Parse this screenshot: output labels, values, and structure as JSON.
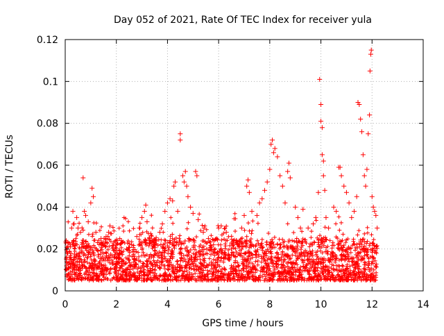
{
  "chart_data": {
    "type": "scatter",
    "title": "Day 052 of 2021, Rate Of TEC Index for receiver yula",
    "xlabel": "GPS time / hours",
    "ylabel": "ROTI / TECUs",
    "xlim": [
      0,
      14
    ],
    "ylim": [
      0,
      0.12
    ],
    "xticks": [
      0,
      2,
      4,
      6,
      8,
      10,
      12,
      14
    ],
    "yticks": [
      0,
      0.02,
      0.04,
      0.06,
      0.08,
      0.1,
      0.12
    ],
    "xtick_labels": [
      "0",
      "2",
      "4",
      "6",
      "8",
      "10",
      "12",
      "14"
    ],
    "ytick_labels": [
      "0",
      "0.02",
      "0.04",
      "0.06",
      "0.08",
      "0.1",
      "0.12"
    ],
    "grid": true,
    "marker": "+",
    "marker_color": "#ff0000",
    "background_band": {
      "x_range": [
        0,
        12.2
      ],
      "description_values": {
        "low": 0.005,
        "high": 0.025
      }
    },
    "series": [
      {
        "name": "ROTI",
        "points": [
          [
            0.05,
            0.015
          ],
          [
            0.1,
            0.018
          ],
          [
            0.2,
            0.022
          ],
          [
            0.25,
            0.03
          ],
          [
            0.3,
            0.038
          ],
          [
            0.35,
            0.032
          ],
          [
            0.45,
            0.035
          ],
          [
            0.5,
            0.03
          ],
          [
            0.6,
            0.028
          ],
          [
            0.7,
            0.054
          ],
          [
            0.75,
            0.038
          ],
          [
            0.8,
            0.036
          ],
          [
            0.9,
            0.033
          ],
          [
            1.0,
            0.042
          ],
          [
            1.05,
            0.049
          ],
          [
            1.1,
            0.045
          ],
          [
            1.2,
            0.028
          ],
          [
            1.4,
            0.025
          ],
          [
            1.6,
            0.026
          ],
          [
            1.7,
            0.028
          ],
          [
            1.75,
            0.031
          ],
          [
            2.0,
            0.022
          ],
          [
            2.2,
            0.024
          ],
          [
            2.4,
            0.02
          ],
          [
            2.6,
            0.022
          ],
          [
            2.8,
            0.026
          ],
          [
            2.9,
            0.03
          ],
          [
            3.0,
            0.035
          ],
          [
            3.1,
            0.038
          ],
          [
            3.15,
            0.041
          ],
          [
            3.2,
            0.033
          ],
          [
            3.3,
            0.025
          ],
          [
            3.5,
            0.022
          ],
          [
            3.7,
            0.028
          ],
          [
            3.8,
            0.032
          ],
          [
            3.9,
            0.038
          ],
          [
            4.0,
            0.042
          ],
          [
            4.1,
            0.044
          ],
          [
            4.2,
            0.043
          ],
          [
            4.25,
            0.05
          ],
          [
            4.3,
            0.052
          ],
          [
            4.4,
            0.038
          ],
          [
            4.5,
            0.075
          ],
          [
            4.5,
            0.072
          ],
          [
            4.6,
            0.055
          ],
          [
            4.65,
            0.052
          ],
          [
            4.7,
            0.057
          ],
          [
            4.75,
            0.05
          ],
          [
            4.8,
            0.045
          ],
          [
            4.9,
            0.04
          ],
          [
            5.0,
            0.037
          ],
          [
            5.1,
            0.057
          ],
          [
            5.15,
            0.055
          ],
          [
            5.2,
            0.034
          ],
          [
            5.4,
            0.028
          ],
          [
            5.6,
            0.025
          ],
          [
            5.8,
            0.022
          ],
          [
            6.0,
            0.03
          ],
          [
            6.1,
            0.031
          ],
          [
            6.3,
            0.028
          ],
          [
            6.5,
            0.02
          ],
          [
            6.7,
            0.024
          ],
          [
            6.9,
            0.03
          ],
          [
            7.0,
            0.036
          ],
          [
            7.1,
            0.05
          ],
          [
            7.15,
            0.053
          ],
          [
            7.2,
            0.047
          ],
          [
            7.3,
            0.038
          ],
          [
            7.5,
            0.036
          ],
          [
            7.6,
            0.042
          ],
          [
            7.7,
            0.044
          ],
          [
            7.8,
            0.048
          ],
          [
            7.9,
            0.052
          ],
          [
            8.0,
            0.058
          ],
          [
            8.05,
            0.07
          ],
          [
            8.1,
            0.072
          ],
          [
            8.15,
            0.066
          ],
          [
            8.2,
            0.068
          ],
          [
            8.3,
            0.064
          ],
          [
            8.4,
            0.055
          ],
          [
            8.5,
            0.05
          ],
          [
            8.6,
            0.042
          ],
          [
            8.7,
            0.057
          ],
          [
            8.75,
            0.061
          ],
          [
            8.8,
            0.054
          ],
          [
            9.0,
            0.04
          ],
          [
            9.1,
            0.035
          ],
          [
            9.2,
            0.03
          ],
          [
            9.3,
            0.039
          ],
          [
            9.5,
            0.03
          ],
          [
            9.7,
            0.032
          ],
          [
            9.8,
            0.035
          ],
          [
            9.9,
            0.047
          ],
          [
            9.95,
            0.101
          ],
          [
            10.0,
            0.089
          ],
          [
            10.0,
            0.081
          ],
          [
            10.05,
            0.078
          ],
          [
            10.05,
            0.065
          ],
          [
            10.1,
            0.062
          ],
          [
            10.1,
            0.055
          ],
          [
            10.15,
            0.048
          ],
          [
            10.2,
            0.035
          ],
          [
            10.3,
            0.03
          ],
          [
            10.5,
            0.04
          ],
          [
            10.6,
            0.038
          ],
          [
            10.7,
            0.059
          ],
          [
            10.75,
            0.059
          ],
          [
            10.8,
            0.055
          ],
          [
            10.9,
            0.05
          ],
          [
            11.0,
            0.047
          ],
          [
            11.1,
            0.042
          ],
          [
            11.2,
            0.035
          ],
          [
            11.3,
            0.038
          ],
          [
            11.4,
            0.045
          ],
          [
            11.45,
            0.09
          ],
          [
            11.5,
            0.089
          ],
          [
            11.55,
            0.082
          ],
          [
            11.6,
            0.076
          ],
          [
            11.65,
            0.065
          ],
          [
            11.7,
            0.055
          ],
          [
            11.75,
            0.05
          ],
          [
            11.8,
            0.058
          ],
          [
            11.85,
            0.075
          ],
          [
            11.9,
            0.084
          ],
          [
            11.92,
            0.105
          ],
          [
            11.95,
            0.113
          ],
          [
            11.97,
            0.115
          ],
          [
            12.0,
            0.045
          ],
          [
            12.05,
            0.04
          ],
          [
            12.1,
            0.038
          ],
          [
            12.15,
            0.036
          ],
          [
            12.2,
            0.03
          ]
        ]
      }
    ]
  }
}
